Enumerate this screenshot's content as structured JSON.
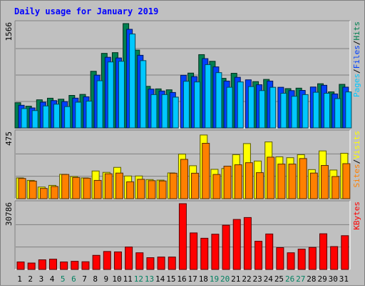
{
  "chart_data": {
    "type": "bar",
    "title": "Daily usage for January 2019",
    "days": [
      "1",
      "2",
      "3",
      "4",
      "5",
      "6",
      "7",
      "8",
      "9",
      "10",
      "11",
      "12",
      "13",
      "14",
      "15",
      "16",
      "17",
      "18",
      "19",
      "20",
      "21",
      "22",
      "23",
      "24",
      "25",
      "26",
      "27",
      "28",
      "29",
      "30",
      "31"
    ],
    "weekend_days": [
      "5",
      "6",
      "12",
      "13",
      "19",
      "20",
      "26",
      "27"
    ],
    "panels": [
      {
        "name": "requests",
        "ymax_label": "1566",
        "ymax": 1566,
        "legend": [
          {
            "text": "Pages",
            "color": "#00c8ff"
          },
          {
            "text": "/",
            "color": "#000000"
          },
          {
            "text": "Files",
            "color": "#0040ff"
          },
          {
            "text": "/",
            "color": "#000000"
          },
          {
            "text": "Hits",
            "color": "#008050"
          }
        ],
        "series": [
          {
            "name": "Hits",
            "color": "#008050",
            "values": [
              378,
              326,
              422,
              446,
              431,
              488,
              503,
              850,
              1119,
              1130,
              1566,
              1168,
              624,
              586,
              572,
              0,
              823,
              1100,
              1000,
              744,
              820,
              0,
              695,
              728,
              0,
              590,
              597,
              0,
              663,
              541,
              654
            ]
          },
          {
            "name": "Files",
            "color": "#0040ff",
            "values": [
              340,
              300,
              386,
              410,
              395,
              447,
              467,
              792,
              1060,
              1050,
              1480,
              1090,
              582,
              554,
              532,
              790,
              770,
              1040,
              916,
              703,
              760,
              722,
              648,
              703,
              610,
              560,
              563,
              614,
              640,
              510,
              612
            ]
          },
          {
            "name": "Pages",
            "color": "#00c8ff",
            "values": [
              290,
              260,
              330,
              356,
              320,
              386,
              402,
              708,
              990,
              1000,
              1410,
              1010,
              500,
              500,
              462,
              700,
              690,
              950,
              830,
              610,
              690,
              620,
              560,
              610,
              520,
              475,
              500,
              535,
              520,
              440,
              540
            ]
          }
        ]
      },
      {
        "name": "visitors",
        "ymax_label": "475",
        "ymax": 475,
        "legend": [
          {
            "text": "Sites",
            "color": "#ff8000"
          },
          {
            "text": "/",
            "color": "#000000"
          },
          {
            "text": "Visits",
            "color": "#ffff00"
          }
        ],
        "series": [
          {
            "name": "Visits",
            "color": "#ffff00",
            "values": [
              150,
              132,
              84,
              96,
              176,
              160,
              150,
              200,
              190,
              226,
              164,
              164,
              138,
              134,
              186,
              322,
              238,
              460,
              212,
              218,
              318,
              398,
              272,
              410,
              302,
              296,
              318,
              210,
              345,
              207,
              328
            ]
          },
          {
            "name": "Sites",
            "color": "#ff8000",
            "values": [
              146,
              127,
              74,
              88,
              175,
              153,
              148,
              132,
              180,
              185,
              122,
              140,
              130,
              128,
              184,
              284,
              184,
              400,
              175,
              235,
              245,
              260,
              188,
              300,
              250,
              250,
              290,
              185,
              240,
              160,
              253
            ]
          }
        ]
      },
      {
        "name": "kbytes",
        "ymax_label": "30786",
        "ymax": 30786,
        "legend": [
          {
            "text": "KBytes",
            "color": "#ff0000"
          }
        ],
        "series": [
          {
            "name": "KBytes",
            "color": "#ff0000",
            "values": [
              3500,
              3000,
              4500,
              4800,
              3500,
              3800,
              3600,
              6600,
              8400,
              8200,
              10500,
              7800,
              5500,
              5800,
              5800,
              30786,
              17100,
              14600,
              16500,
              20700,
              23400,
              24300,
              13200,
              16600,
              10200,
              7800,
              9500,
              10300,
              16700,
              10700,
              15800
            ]
          }
        ]
      }
    ]
  }
}
